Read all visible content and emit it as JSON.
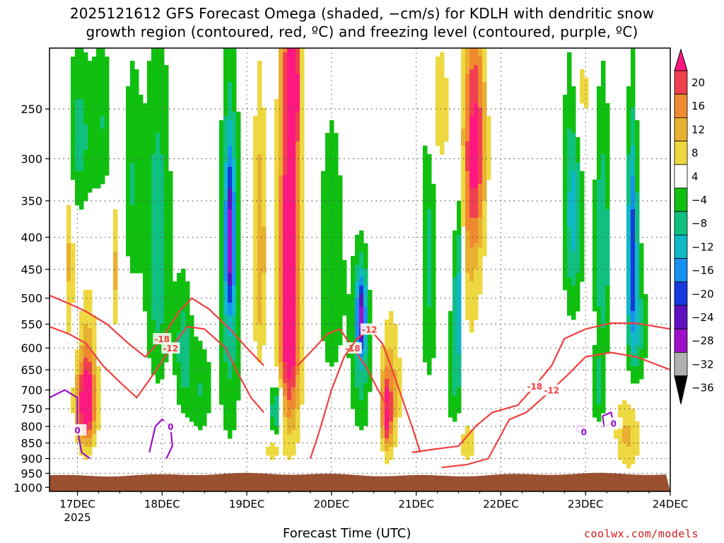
{
  "title": {
    "line1": "2025121612 GFS Forecast Omega (shaded, −cm/s) for KDLH with dendritic snow",
    "line2": "growth region (contoured, red, ºC) and freezing level (contoured, purple, ºC)"
  },
  "credit": "coolwx.com/models",
  "colors": {
    "dgz_contour": "#f04040",
    "freezing_contour": "#9a10c8",
    "terrain": "#9b5030",
    "grid": "#555555"
  },
  "chart_data": {
    "type": "heatmap",
    "title": "2025121612 GFS Forecast Omega (shaded, −cm/s) for KDLH with dendritic snow growth region (contoured, red, ºC) and freezing level (contoured, purple, ºC)",
    "xlabel": "Forecast Time (UTC)",
    "ylabel": "",
    "x_ticks": [
      {
        "label": "17DEC",
        "sub": "2025"
      },
      {
        "label": "18DEC",
        "sub": ""
      },
      {
        "label": "19DEC",
        "sub": ""
      },
      {
        "label": "20DEC",
        "sub": ""
      },
      {
        "label": "21DEC",
        "sub": ""
      },
      {
        "label": "22DEC",
        "sub": ""
      },
      {
        "label": "23DEC",
        "sub": ""
      },
      {
        "label": "24DEC",
        "sub": ""
      }
    ],
    "x_range_days": [
      16.67,
      24.0
    ],
    "y_ticks": [
      "250",
      "300",
      "350",
      "400",
      "450",
      "500",
      "550",
      "600",
      "650",
      "700",
      "750",
      "800",
      "850",
      "900",
      "950",
      "1000"
    ],
    "y_values": [
      250,
      300,
      350,
      400,
      450,
      500,
      550,
      600,
      650,
      700,
      750,
      800,
      850,
      900,
      950,
      1000
    ],
    "y_range_hpa": [
      200,
      1015
    ],
    "y_scale": "log-pressure",
    "grid": true,
    "colorbar": {
      "labels": [
        "20",
        "16",
        "12",
        "8",
        "4",
        "−4",
        "−8",
        "−12",
        "−16",
        "−20",
        "−24",
        "−28",
        "−32",
        "−36"
      ],
      "bins": [
        {
          "from": 16,
          "to": 20,
          "color": "#f04050"
        },
        {
          "from": 12,
          "to": 16,
          "color": "#f08a30"
        },
        {
          "from": 8,
          "to": 12,
          "color": "#e8b030"
        },
        {
          "from": 4,
          "to": 8,
          "color": "#eed840"
        },
        {
          "from": -4,
          "to": 4,
          "color": "#ffffff"
        },
        {
          "from": -8,
          "to": -4,
          "color": "#10c010"
        },
        {
          "from": -12,
          "to": -8,
          "color": "#10c080"
        },
        {
          "from": -16,
          "to": -12,
          "color": "#10b8c8"
        },
        {
          "from": -20,
          "to": -16,
          "color": "#1890f0"
        },
        {
          "from": -24,
          "to": -20,
          "color": "#1838e0"
        },
        {
          "from": -28,
          "to": -24,
          "color": "#6010c0"
        },
        {
          "from": -32,
          "to": -28,
          "color": "#a010c8"
        },
        {
          "from": -36,
          "to": -32,
          "color": "#b0b0b0"
        }
      ],
      "top_cap_color": "#ff1880",
      "bottom_cap_color": "#000000"
    },
    "blobs": [
      {
        "day": 16.9,
        "p": 420,
        "dd": 0.06,
        "dp": 160,
        "v": 9
      },
      {
        "day": 17.1,
        "p": 740,
        "dd": 0.12,
        "dp": 110,
        "v": 20
      },
      {
        "day": 17.12,
        "p": 650,
        "dd": 0.1,
        "dp": 180,
        "v": 10
      },
      {
        "day": 17.3,
        "p": 260,
        "dd": 0.12,
        "dp": 80,
        "v": -7
      },
      {
        "day": 17.45,
        "p": 450,
        "dd": 0.05,
        "dp": 110,
        "v": 9
      },
      {
        "day": 17.65,
        "p": 330,
        "dd": 0.12,
        "dp": 140,
        "v": -8
      },
      {
        "day": 17.0,
        "p": 280,
        "dd": 0.2,
        "dp": 90,
        "v": -10
      },
      {
        "day": 17.95,
        "p": 420,
        "dd": 0.16,
        "dp": 260,
        "v": -11
      },
      {
        "day": 18.25,
        "p": 600,
        "dd": 0.1,
        "dp": 150,
        "v": -10
      },
      {
        "day": 18.45,
        "p": 700,
        "dd": 0.14,
        "dp": 130,
        "v": -8
      },
      {
        "day": 18.8,
        "p": 400,
        "dd": 0.06,
        "dp": 120,
        "v": -22
      },
      {
        "day": 18.8,
        "p": 500,
        "dd": 0.14,
        "dp": 350,
        "v": -10
      },
      {
        "day": 19.15,
        "p": 420,
        "dd": 0.08,
        "dp": 200,
        "v": 12
      },
      {
        "day": 19.5,
        "p": 380,
        "dd": 0.12,
        "dp": 300,
        "v": 20
      },
      {
        "day": 19.5,
        "p": 600,
        "dd": 0.14,
        "dp": 250,
        "v": 14
      },
      {
        "day": 19.55,
        "p": 230,
        "dd": 0.08,
        "dp": 60,
        "v": 18
      },
      {
        "day": 19.35,
        "p": 750,
        "dd": 0.08,
        "dp": 80,
        "v": -15
      },
      {
        "day": 19.3,
        "p": 870,
        "dd": 0.08,
        "dp": 40,
        "v": 7
      },
      {
        "day": 20.0,
        "p": 450,
        "dd": 0.22,
        "dp": 300,
        "v": -6
      },
      {
        "day": 20.35,
        "p": 530,
        "dd": 0.06,
        "dp": 80,
        "v": -21
      },
      {
        "day": 20.35,
        "p": 620,
        "dd": 0.12,
        "dp": 200,
        "v": -10
      },
      {
        "day": 20.65,
        "p": 760,
        "dd": 0.06,
        "dp": 100,
        "v": 18
      },
      {
        "day": 20.7,
        "p": 700,
        "dd": 0.12,
        "dp": 180,
        "v": 10
      },
      {
        "day": 21.15,
        "p": 430,
        "dd": 0.1,
        "dp": 260,
        "v": -9
      },
      {
        "day": 21.5,
        "p": 460,
        "dd": 0.06,
        "dp": 180,
        "v": -16
      },
      {
        "day": 21.45,
        "p": 640,
        "dd": 0.1,
        "dp": 180,
        "v": -9
      },
      {
        "day": 21.7,
        "p": 280,
        "dd": 0.12,
        "dp": 120,
        "v": 17
      },
      {
        "day": 21.6,
        "p": 380,
        "dd": 0.18,
        "dp": 220,
        "v": 9
      },
      {
        "day": 21.25,
        "p": 250,
        "dd": 0.12,
        "dp": 70,
        "v": 8
      },
      {
        "day": 21.6,
        "p": 850,
        "dd": 0.12,
        "dp": 70,
        "v": 7
      },
      {
        "day": 22.85,
        "p": 360,
        "dd": 0.12,
        "dp": 160,
        "v": -14
      },
      {
        "day": 23.2,
        "p": 420,
        "dd": 0.1,
        "dp": 200,
        "v": -12
      },
      {
        "day": 23.55,
        "p": 400,
        "dd": 0.06,
        "dp": 160,
        "v": -20
      },
      {
        "day": 23.6,
        "p": 560,
        "dd": 0.12,
        "dp": 150,
        "v": -11
      },
      {
        "day": 22.95,
        "p": 240,
        "dd": 0.1,
        "dp": 60,
        "v": 8
      },
      {
        "day": 23.5,
        "p": 820,
        "dd": 0.16,
        "dp": 120,
        "v": 9
      },
      {
        "day": 23.15,
        "p": 700,
        "dd": 0.08,
        "dp": 90,
        "v": -9
      }
    ],
    "dgz_contours": [
      {
        "label": "-18",
        "points": [
          [
            16.67,
            495
          ],
          [
            16.9,
            510
          ],
          [
            17.1,
            525
          ],
          [
            17.35,
            550
          ],
          [
            17.6,
            590
          ],
          [
            17.8,
            620
          ],
          [
            18.0,
            580
          ],
          [
            18.2,
            525
          ],
          [
            18.35,
            500
          ],
          [
            18.55,
            520
          ],
          [
            18.8,
            560
          ],
          [
            19.0,
            600
          ],
          [
            19.2,
            640
          ]
        ]
      },
      {
        "label": "-12",
        "points": [
          [
            16.67,
            555
          ],
          [
            16.9,
            570
          ],
          [
            17.1,
            590
          ],
          [
            17.3,
            640
          ],
          [
            17.5,
            680
          ],
          [
            17.7,
            720
          ],
          [
            17.9,
            660
          ],
          [
            18.1,
            600
          ],
          [
            18.3,
            555
          ],
          [
            18.5,
            560
          ],
          [
            18.75,
            600
          ],
          [
            18.9,
            660
          ],
          [
            19.05,
            720
          ],
          [
            19.2,
            760
          ]
        ]
      },
      {
        "label": "-18",
        "points": [
          [
            19.6,
            640
          ],
          [
            19.8,
            600
          ],
          [
            19.95,
            570
          ],
          [
            20.1,
            560
          ],
          [
            20.25,
            600
          ],
          [
            20.4,
            640
          ],
          [
            20.55,
            700
          ],
          [
            20.7,
            760
          ]
        ]
      },
      {
        "label": "-12",
        "points": [
          [
            19.75,
            900
          ],
          [
            19.85,
            820
          ],
          [
            20.0,
            700
          ],
          [
            20.15,
            620
          ],
          [
            20.3,
            580
          ],
          [
            20.45,
            560
          ],
          [
            20.6,
            590
          ],
          [
            20.7,
            640
          ],
          [
            20.8,
            700
          ],
          [
            20.95,
            800
          ],
          [
            21.05,
            880
          ]
        ]
      },
      {
        "label": "-18",
        "points": [
          [
            20.95,
            880
          ],
          [
            21.2,
            870
          ],
          [
            21.5,
            860
          ],
          [
            21.7,
            800
          ],
          [
            21.9,
            760
          ],
          [
            22.2,
            740
          ],
          [
            22.4,
            690
          ],
          [
            22.6,
            640
          ],
          [
            22.75,
            580
          ],
          [
            23.0,
            560
          ],
          [
            23.3,
            548
          ],
          [
            23.6,
            548
          ],
          [
            24.0,
            560
          ]
        ]
      },
      {
        "label": "-12",
        "points": [
          [
            21.3,
            930
          ],
          [
            21.6,
            920
          ],
          [
            21.85,
            900
          ],
          [
            22.1,
            780
          ],
          [
            22.3,
            760
          ],
          [
            22.6,
            700
          ],
          [
            22.8,
            660
          ],
          [
            23.0,
            620
          ],
          [
            23.3,
            610
          ],
          [
            23.6,
            620
          ],
          [
            24.0,
            650
          ]
        ]
      }
    ],
    "freezing_contours": [
      {
        "label": "0",
        "points": [
          [
            16.67,
            720
          ],
          [
            16.85,
            700
          ],
          [
            17.0,
            720
          ],
          [
            17.0,
            810
          ],
          [
            17.05,
            880
          ],
          [
            17.15,
            900
          ]
        ]
      },
      {
        "label": "0",
        "points": [
          [
            17.85,
            880
          ],
          [
            17.92,
            800
          ],
          [
            18.0,
            780
          ],
          [
            18.1,
            800
          ],
          [
            18.12,
            860
          ],
          [
            18.05,
            900
          ]
        ]
      },
      {
        "label": "0",
        "points": [
          [
            22.9,
            800
          ],
          [
            22.98,
            800
          ],
          [
            22.98,
            815
          ],
          [
            22.9,
            815
          ],
          [
            22.9,
            800
          ]
        ]
      },
      {
        "label": "0",
        "points": [
          [
            23.2,
            770
          ],
          [
            23.3,
            760
          ],
          [
            23.33,
            790
          ],
          [
            23.22,
            800
          ],
          [
            23.2,
            770
          ]
        ]
      }
    ],
    "surface_pressure_hpa": 955
  },
  "axis_labels": {
    "x": "Forecast Time (UTC)"
  }
}
